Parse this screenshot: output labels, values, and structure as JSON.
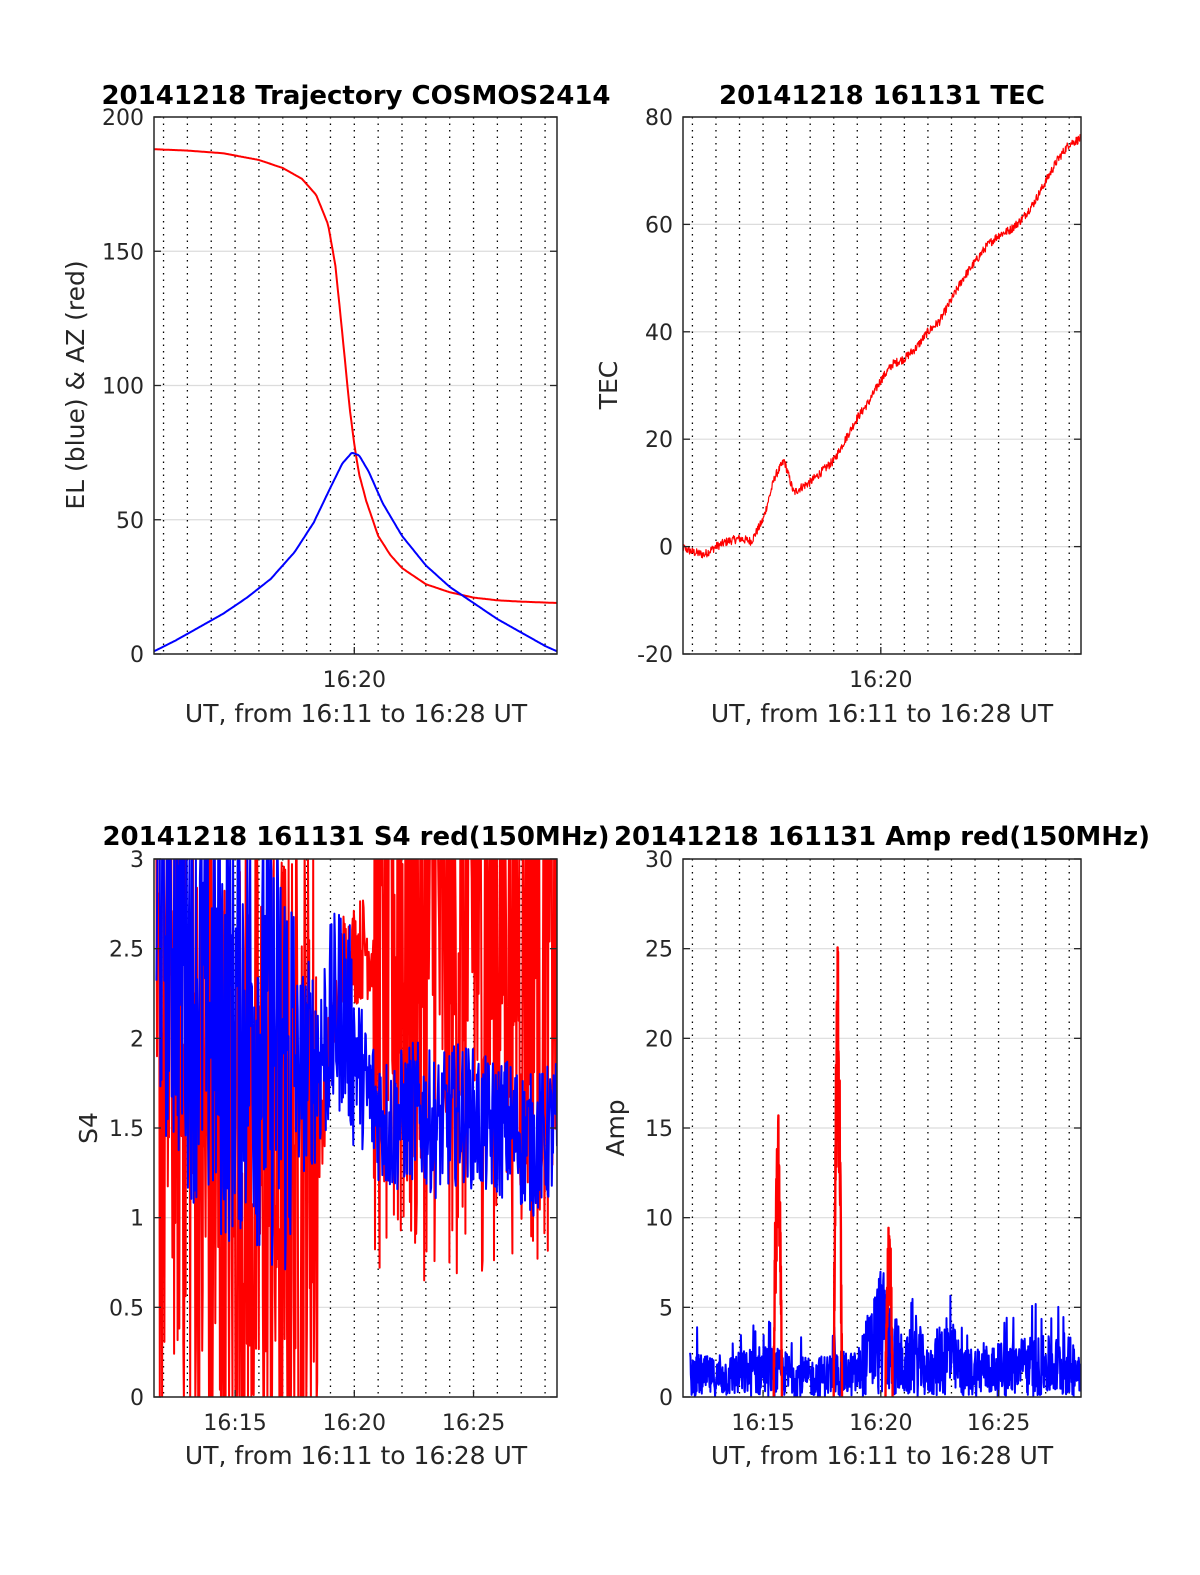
{
  "figure": {
    "charts": [
      {
        "id": "trajectory",
        "type": "line",
        "title": "20141218 Trajectory COSMOS2414",
        "xlabel": "UT, from 16:11 to 16:28 UT",
        "ylabel": "EL (blue) & AZ (red)",
        "xlim": [
          0.6,
          17.5
        ],
        "ylim": [
          0,
          200
        ],
        "yticks": [
          0,
          50,
          100,
          150,
          200
        ],
        "xticks": [
          {
            "value": 9.0,
            "label": "16:20"
          }
        ],
        "xgrid_dotted": [
          1.0,
          2.0,
          3.0,
          4.0,
          5.0,
          6.0,
          7.0,
          8.0,
          9.0,
          10.0,
          11.0,
          12.0,
          13.0,
          14.0,
          15.0,
          16.0,
          17.0
        ],
        "colors": {
          "el": "#0000ff",
          "az": "#ff0000"
        }
      },
      {
        "id": "tec",
        "type": "line",
        "title": "20141218 161131 TEC",
        "xlabel": "UT, from 16:11 to 16:28 UT",
        "ylabel": "TEC",
        "xlim": [
          0.6,
          17.5
        ],
        "ylim": [
          -20,
          80
        ],
        "yticks": [
          -20,
          0,
          20,
          40,
          60,
          80
        ],
        "xticks": [
          {
            "value": 9.0,
            "label": "16:20"
          }
        ],
        "xgrid_dotted": [
          1.0,
          2.0,
          3.0,
          4.0,
          5.0,
          6.0,
          7.0,
          8.0,
          9.0,
          10.0,
          11.0,
          12.0,
          13.0,
          14.0,
          15.0,
          16.0,
          17.0
        ],
        "colors": {
          "tec": "#ff0000"
        }
      },
      {
        "id": "s4",
        "type": "line",
        "title": "20141218 161131 S4 red(150MHz)",
        "xlabel": "UT, from 16:11 to 16:28 UT",
        "ylabel": "S4",
        "xlim": [
          0.6,
          17.5
        ],
        "ylim": [
          0,
          3
        ],
        "yticks": [
          0,
          0.5,
          1,
          1.5,
          2,
          2.5,
          3
        ],
        "xticks": [
          {
            "value": 4.0,
            "label": "16:15"
          },
          {
            "value": 9.0,
            "label": "16:20"
          },
          {
            "value": 14.0,
            "label": "16:25"
          }
        ],
        "xgrid_dotted": [
          1.0,
          2.0,
          3.0,
          4.0,
          5.0,
          6.0,
          7.0,
          8.0,
          9.0,
          10.0,
          11.0,
          12.0,
          13.0,
          14.0,
          15.0,
          16.0,
          17.0
        ],
        "colors": {
          "red": "#ff0000",
          "blue": "#0000ff"
        }
      },
      {
        "id": "amp",
        "type": "line",
        "title": "20141218 161131 Amp red(150MHz)",
        "xlabel": "UT, from 16:11 to 16:28 UT",
        "ylabel": "Amp",
        "xlim": [
          0.6,
          17.5
        ],
        "ylim": [
          0,
          30
        ],
        "yticks": [
          0,
          5,
          10,
          15,
          20,
          25,
          30
        ],
        "xticks": [
          {
            "value": 4.0,
            "label": "16:15"
          },
          {
            "value": 9.0,
            "label": "16:20"
          },
          {
            "value": 14.0,
            "label": "16:25"
          }
        ],
        "xgrid_dotted": [
          1.0,
          2.0,
          3.0,
          4.0,
          5.0,
          6.0,
          7.0,
          8.0,
          9.0,
          10.0,
          11.0,
          12.0,
          13.0,
          14.0,
          15.0,
          16.0,
          17.0
        ],
        "colors": {
          "red": "#ff0000",
          "blue": "#0000ff"
        }
      }
    ]
  },
  "chart_data": [
    {
      "type": "line",
      "title": "20141218 Trajectory COSMOS2414",
      "xlabel": "UT, from 16:11 to 16:28 UT",
      "ylabel": "EL (blue) & AZ (red)",
      "x_unit": "minutes after 16:11 UT",
      "ylim": [
        0,
        200
      ],
      "grid": "dotted vertical every minute",
      "series": [
        {
          "name": "EL (blue)",
          "color": "#0000ff",
          "x": [
            0.6,
            1.5,
            2.5,
            3.5,
            4.5,
            5.5,
            6.5,
            7.3,
            8.0,
            8.5,
            8.9,
            9.2,
            9.6,
            10.2,
            11.0,
            12.0,
            13.0,
            14.0,
            15.0,
            16.0,
            17.0,
            17.5
          ],
          "y": [
            1,
            5,
            10,
            15,
            21,
            28,
            38,
            49,
            62,
            71,
            75,
            74,
            68,
            56,
            44,
            33,
            25,
            19,
            13,
            8,
            3,
            1
          ]
        },
        {
          "name": "AZ (red)",
          "color": "#ff0000",
          "x": [
            0.6,
            2.0,
            3.5,
            5.0,
            6.0,
            6.8,
            7.4,
            7.9,
            8.2,
            8.4,
            8.6,
            8.8,
            9.0,
            9.2,
            9.5,
            10.0,
            10.5,
            11.0,
            12.0,
            13.0,
            14.0,
            15.0,
            16.0,
            17.5
          ],
          "y": [
            188,
            187.5,
            186.5,
            184,
            181,
            177,
            171,
            160,
            145,
            128,
            110,
            92,
            78,
            67,
            57,
            44,
            37,
            32,
            26,
            23,
            21,
            20,
            19.5,
            19
          ]
        }
      ]
    },
    {
      "type": "line",
      "title": "20141218 161131 TEC",
      "xlabel": "UT, from 16:11 to 16:28 UT",
      "ylabel": "TEC",
      "x_unit": "minutes after 16:11 UT",
      "ylim": [
        -20,
        80
      ],
      "series": [
        {
          "name": "TEC",
          "color": "#ff0000",
          "x": [
            0.5,
            1.0,
            1.5,
            2.0,
            2.5,
            3.0,
            3.5,
            4.0,
            4.5,
            4.9,
            5.3,
            5.6,
            6.0,
            6.5,
            7.0,
            7.5,
            8.0,
            8.5,
            9.0,
            9.5,
            10.0,
            10.5,
            11.0,
            11.5,
            12.0,
            12.5,
            13.0,
            13.5,
            14.0,
            14.5,
            15.0,
            15.5,
            16.0,
            16.5,
            17.0,
            17.5
          ],
          "y": [
            0,
            -1,
            -1.5,
            0,
            1,
            1.5,
            1,
            5,
            13,
            16,
            10,
            11,
            12,
            14,
            16,
            20,
            24,
            27,
            31,
            34,
            35,
            37,
            40,
            42,
            46,
            50,
            53,
            56,
            58,
            59,
            61,
            64,
            68,
            72,
            75,
            76
          ]
        }
      ]
    },
    {
      "type": "line",
      "title": "20141218 161131 S4 red(150MHz)",
      "xlabel": "UT, from 16:11 to 16:28 UT",
      "ylabel": "S4",
      "x_unit": "minutes after 16:11 UT",
      "ylim": [
        0,
        3
      ],
      "series": [
        {
          "name": "S4 red(150MHz)",
          "color": "#ff0000",
          "x": [
            0.7,
            1.5,
            2.5,
            3.5,
            4.5,
            5.5,
            6.5,
            7.5,
            8.5,
            9.5,
            10.5,
            11.5,
            12.5,
            13.5,
            14.5,
            15.5,
            16.5,
            17.5
          ],
          "y": [
            1.5,
            2.2,
            1.4,
            1.0,
            1.2,
            1.1,
            1.3,
            1.6,
            2.7,
            2.8,
            2.6,
            2.7,
            2.8,
            2.7,
            2.8,
            2.9,
            2.8,
            2.9
          ]
        },
        {
          "name": "S4 blue",
          "color": "#0000ff",
          "x": [
            0.7,
            1.5,
            2.5,
            3.5,
            4.5,
            5.5,
            6.5,
            7.5,
            8.5,
            9.5,
            10.5,
            11.5,
            12.5,
            13.5,
            14.5,
            15.5,
            16.5,
            17.5
          ],
          "y": [
            2.8,
            2.6,
            2.3,
            2.1,
            2.2,
            2.0,
            1.8,
            1.9,
            2.2,
            1.7,
            1.5,
            1.6,
            1.5,
            1.6,
            1.5,
            1.5,
            1.4,
            1.5
          ]
        }
      ]
    },
    {
      "type": "line",
      "title": "20141218 161131 Amp red(150MHz)",
      "xlabel": "UT, from 16:11 to 16:28 UT",
      "ylabel": "Amp",
      "x_unit": "minutes after 16:11 UT",
      "ylim": [
        0,
        30
      ],
      "series": [
        {
          "name": "Amp red(150MHz)",
          "color": "#ff0000",
          "x": [
            4.55,
            4.65,
            4.75,
            7.05,
            7.15,
            7.25,
            7.35,
            9.25,
            9.35,
            9.45
          ],
          "y": [
            13,
            16,
            3,
            24.5,
            19.5,
            12,
            2,
            8.5,
            9,
            2
          ]
        },
        {
          "name": "Amp blue",
          "color": "#0000ff",
          "x": [
            1.0,
            2.0,
            3.0,
            4.0,
            5.0,
            6.0,
            7.0,
            8.0,
            9.0,
            10.0,
            10.5,
            11.0,
            11.8,
            12.5,
            13.0,
            14.0,
            15.0,
            16.0,
            17.0,
            17.5
          ],
          "y": [
            3,
            2.5,
            3,
            3.5,
            3,
            2.5,
            3,
            3,
            8.8,
            3.5,
            5.5,
            3,
            6,
            3,
            3.5,
            3.5,
            4,
            4,
            4,
            3.5
          ]
        }
      ]
    }
  ]
}
